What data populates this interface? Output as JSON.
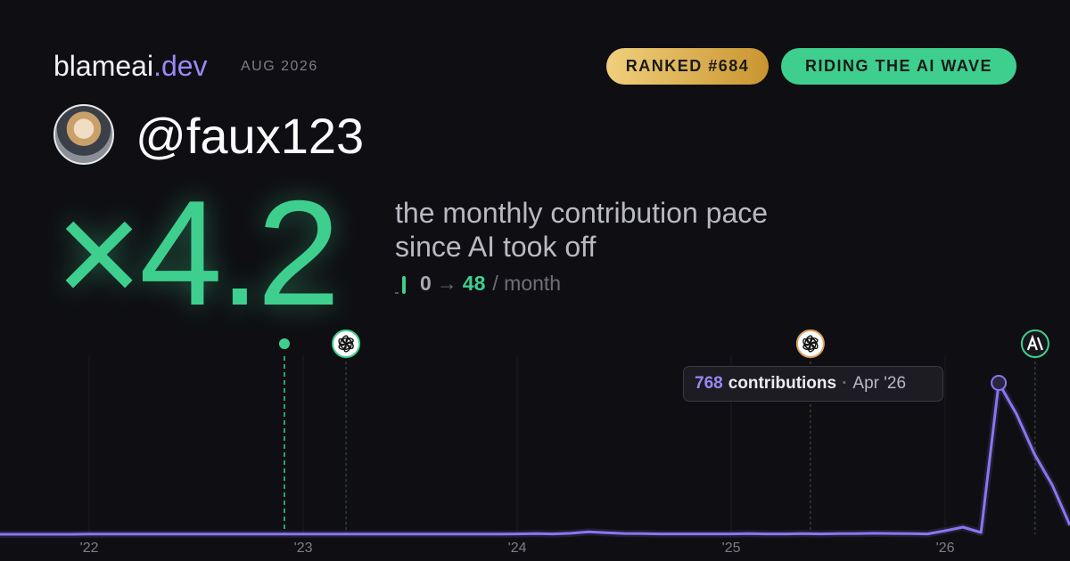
{
  "header": {
    "brand": "blameai",
    "brand_suffix": ".dev",
    "date": "AUG 2026",
    "rank": "RANKED #684",
    "badge": "RIDING THE AI WAVE"
  },
  "profile": {
    "handle": "@faux123"
  },
  "headline": {
    "multiplier": "×4.2",
    "description": "the monthly contribution pace since AI took off",
    "pace_from": "0",
    "pace_arrow": "→",
    "pace_to": "48",
    "pace_unit": "/ month"
  },
  "tooltip": {
    "unit": "contributions",
    "separator": "·",
    "date": "Apr '26"
  },
  "chart_data": {
    "type": "line",
    "x": [
      2021.583,
      2021.667,
      2021.75,
      2021.833,
      2021.917,
      2022,
      2022.083,
      2022.167,
      2022.25,
      2022.333,
      2022.417,
      2022.5,
      2022.583,
      2022.667,
      2022.75,
      2022.833,
      2022.917,
      2023,
      2023.083,
      2023.167,
      2023.25,
      2023.333,
      2023.417,
      2023.5,
      2023.583,
      2023.667,
      2023.75,
      2023.833,
      2023.917,
      2024,
      2024.083,
      2024.167,
      2024.25,
      2024.333,
      2024.417,
      2024.5,
      2024.583,
      2024.667,
      2024.75,
      2024.833,
      2024.917,
      2025,
      2025.083,
      2025.167,
      2025.25,
      2025.333,
      2025.417,
      2025.5,
      2025.583,
      2025.667,
      2025.75,
      2025.833,
      2025.917,
      2026,
      2026.083,
      2026.167,
      2026.25,
      2026.333,
      2026.417,
      2026.5,
      2026.583
    ],
    "series": [
      {
        "name": "contributions",
        "color": "#8b76f0",
        "values": [
          0,
          0,
          0,
          0,
          0,
          1,
          1,
          1,
          1,
          1,
          1,
          1,
          1,
          1,
          1,
          1,
          1,
          1,
          1,
          1,
          1,
          1,
          1,
          1,
          1,
          1,
          1,
          1,
          1,
          2,
          3,
          2,
          5,
          12,
          8,
          4,
          3,
          2,
          2,
          2,
          2,
          2,
          3,
          2,
          2,
          3,
          2,
          3,
          3,
          5,
          4,
          3,
          2,
          18,
          36,
          9,
          768,
          610,
          406,
          250,
          45
        ]
      }
    ],
    "xlim": [
      2021.583,
      2026.583
    ],
    "xticks": [
      {
        "value": 2022,
        "label": "'22"
      },
      {
        "value": 2023,
        "label": "'23"
      },
      {
        "value": 2024,
        "label": "'24"
      },
      {
        "value": 2025,
        "label": "'25"
      },
      {
        "value": 2026,
        "label": "'26"
      }
    ],
    "events": [
      2022.912,
      2023.2,
      2025.37,
      2026.42
    ],
    "highlight": 56,
    "grid": true
  }
}
